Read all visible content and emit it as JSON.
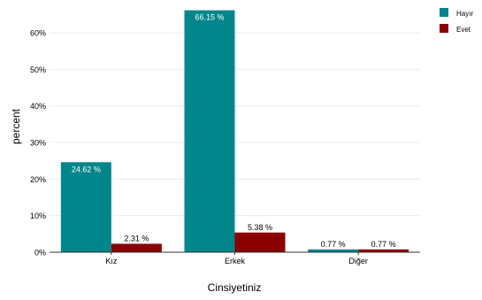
{
  "chart_data": {
    "type": "bar",
    "title": "",
    "xlabel": "Cinsiyetiniz",
    "ylabel": "percent",
    "ylim": [
      0,
      68
    ],
    "y_ticks": [
      {
        "value": 0,
        "label": "0%"
      },
      {
        "value": 10,
        "label": "10%"
      },
      {
        "value": 20,
        "label": "20%"
      },
      {
        "value": 30,
        "label": "30%"
      },
      {
        "value": 40,
        "label": "40%"
      },
      {
        "value": 50,
        "label": "50%"
      },
      {
        "value": 60,
        "label": "60%"
      }
    ],
    "grid": true,
    "legend_position": "top-right",
    "categories": [
      "Kız",
      "Erkek",
      "Diğer"
    ],
    "series": [
      {
        "name": "Hayır",
        "color": "#00868B",
        "values": [
          24.62,
          66.15,
          0.77
        ],
        "labels": [
          "24.62 %",
          "66.15 %",
          "0.77 %"
        ]
      },
      {
        "name": "Evet",
        "color": "#8B0000",
        "values": [
          2.31,
          5.38,
          0.77
        ],
        "labels": [
          "2.31 %",
          "5.38 %",
          "0.77 %"
        ]
      }
    ]
  }
}
